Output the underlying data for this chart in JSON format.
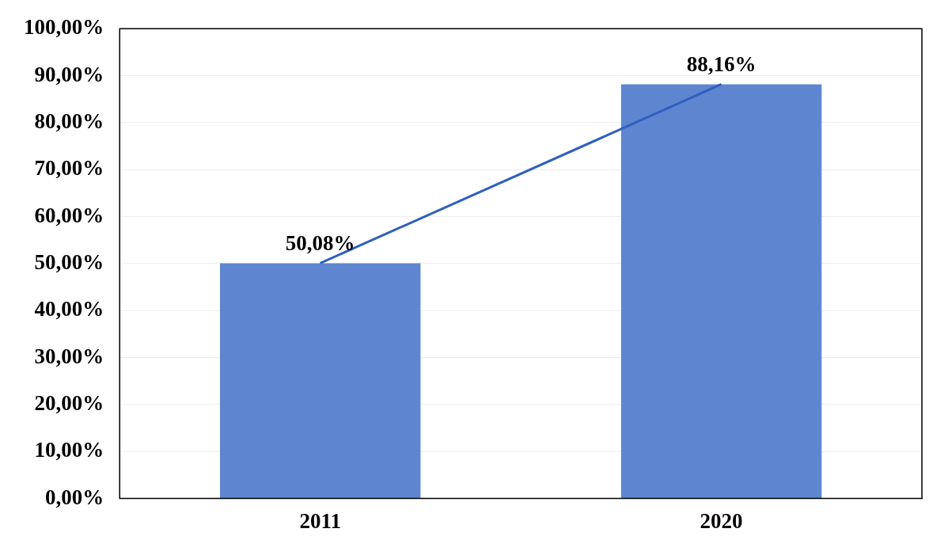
{
  "chart_data": {
    "type": "bar",
    "categories": [
      "2011",
      "2020"
    ],
    "series": [
      {
        "color": "#5e86d0",
        "values": [
          50.08,
          88.16
        ],
        "value_labels": [
          "50,08%",
          "88,16%"
        ]
      },
      {
        "type": "line",
        "color": "#2f5fbf",
        "values": [
          50.08,
          88.16
        ]
      }
    ],
    "ylim": [
      0,
      100
    ],
    "yticks": [
      {
        "value": 0,
        "label": "0,00%"
      },
      {
        "value": 10,
        "label": "10,00%"
      },
      {
        "value": 20,
        "label": "20,00%"
      },
      {
        "value": 30,
        "label": "30,00%"
      },
      {
        "value": 40,
        "label": "40,00%"
      },
      {
        "value": 50,
        "label": "50,00%"
      },
      {
        "value": 60,
        "label": "60,00%"
      },
      {
        "value": 70,
        "label": "70,00%"
      },
      {
        "value": 80,
        "label": "80,00%"
      },
      {
        "value": 90,
        "label": "90,00%"
      },
      {
        "value": 100,
        "label": "100,00%"
      }
    ],
    "grid": "y",
    "legend": false,
    "marker": "none",
    "line_style": "solid"
  }
}
